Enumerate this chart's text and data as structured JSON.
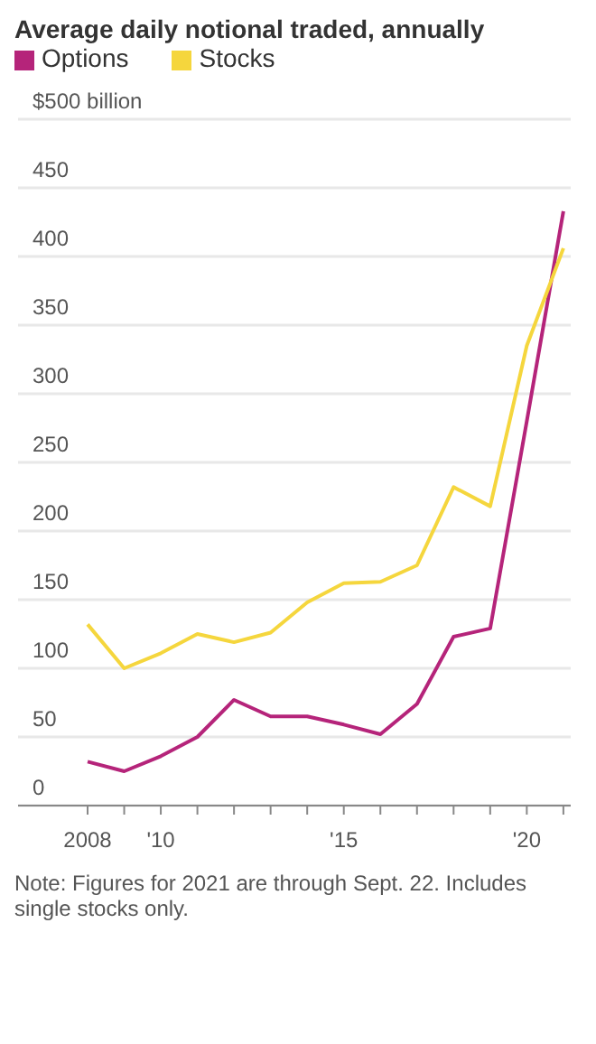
{
  "chart_data": {
    "type": "line",
    "title": "Average daily notional traded, annually",
    "x": [
      2008,
      2009,
      2010,
      2011,
      2012,
      2013,
      2014,
      2015,
      2016,
      2017,
      2018,
      2019,
      2020,
      2021
    ],
    "series": [
      {
        "name": "Options",
        "color": "#b5247a",
        "values": [
          32,
          25,
          36,
          50,
          77,
          65,
          65,
          59,
          52,
          74,
          123,
          129,
          280,
          433
        ]
      },
      {
        "name": "Stocks",
        "color": "#f5d63d",
        "values": [
          132,
          100,
          111,
          125,
          119,
          126,
          148,
          162,
          163,
          175,
          232,
          218,
          335,
          406
        ]
      }
    ],
    "xlim": [
      2006.1,
      2021.2
    ],
    "xticks": [
      {
        "value": 2008,
        "label": "2008"
      },
      {
        "value": 2009,
        "label": null
      },
      {
        "value": 2010,
        "label": "'10"
      },
      {
        "value": 2011,
        "label": null
      },
      {
        "value": 2012,
        "label": null
      },
      {
        "value": 2013,
        "label": null
      },
      {
        "value": 2014,
        "label": null
      },
      {
        "value": 2015,
        "label": "'15"
      },
      {
        "value": 2016,
        "label": null
      },
      {
        "value": 2017,
        "label": null
      },
      {
        "value": 2018,
        "label": null
      },
      {
        "value": 2019,
        "label": null
      },
      {
        "value": 2020,
        "label": "'20"
      },
      {
        "value": 2021,
        "label": null
      }
    ],
    "ylim": [
      0,
      500
    ],
    "yticks": [
      0,
      50,
      100,
      150,
      200,
      250,
      300,
      350,
      400,
      450,
      {
        "value": 500,
        "label": "$500 billion"
      }
    ],
    "grid": "y",
    "legend": "top left",
    "marker": "none",
    "line_style": "solid",
    "annotations": [
      "Note: Figures for 2021 are through Sept. 22. Includes single stocks only."
    ]
  }
}
